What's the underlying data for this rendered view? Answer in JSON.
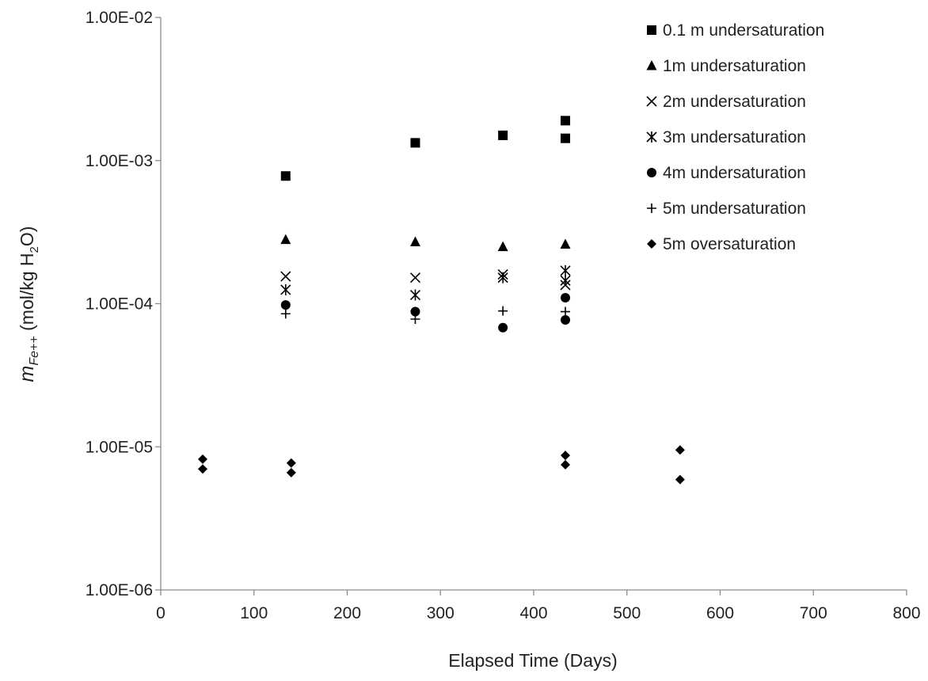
{
  "chart_data": {
    "type": "scatter",
    "title": "",
    "xlabel": "Elapsed Time (Days)",
    "ylabel": {
      "prefix": "m",
      "subscript": "Fe++",
      "units_open": " (mol/kg H",
      "units_sub": "2",
      "units_close": "O)"
    },
    "xlim": [
      0,
      800
    ],
    "ylim": [
      1e-06,
      0.01
    ],
    "yscale": "log",
    "grid": false,
    "legend_position": "top-right",
    "x_ticks": [
      {
        "value": 0,
        "label": "0"
      },
      {
        "value": 100,
        "label": "100"
      },
      {
        "value": 200,
        "label": "200"
      },
      {
        "value": 300,
        "label": "300"
      },
      {
        "value": 400,
        "label": "400"
      },
      {
        "value": 500,
        "label": "500"
      },
      {
        "value": 600,
        "label": "600"
      },
      {
        "value": 700,
        "label": "700"
      },
      {
        "value": 800,
        "label": "800"
      }
    ],
    "y_ticks": [
      {
        "value": 0.01,
        "label": "1.00E-02"
      },
      {
        "value": 0.001,
        "label": "1.00E-03"
      },
      {
        "value": 0.0001,
        "label": "1.00E-04"
      },
      {
        "value": 1e-05,
        "label": "1.00E-05"
      },
      {
        "value": 1e-06,
        "label": "1.00E-06"
      }
    ],
    "series": [
      {
        "name": "0.1 m undersaturation",
        "marker": "square",
        "color": "#000000",
        "points": [
          [
            134,
            0.00078
          ],
          [
            273,
            0.00133
          ],
          [
            367,
            0.0015
          ],
          [
            434,
            0.0019
          ],
          [
            434,
            0.00143
          ]
        ]
      },
      {
        "name": "1m undersaturation",
        "marker": "triangle",
        "color": "#000000",
        "points": [
          [
            134,
            0.00028
          ],
          [
            273,
            0.00027
          ],
          [
            367,
            0.00025
          ],
          [
            434,
            0.00026
          ]
        ]
      },
      {
        "name": "2m undersaturation",
        "marker": "x",
        "color": "#000000",
        "points": [
          [
            134,
            0.000155
          ],
          [
            273,
            0.000152
          ],
          [
            367,
            0.00016
          ],
          [
            434,
            0.000135
          ]
        ]
      },
      {
        "name": "3m undersaturation",
        "marker": "asterisk",
        "color": "#000000",
        "points": [
          [
            134,
            0.000125
          ],
          [
            273,
            0.000115
          ],
          [
            367,
            0.000152
          ],
          [
            434,
            0.00017
          ],
          [
            434,
            0.000145
          ]
        ]
      },
      {
        "name": "4m undersaturation",
        "marker": "circle",
        "color": "#000000",
        "points": [
          [
            134,
            9.8e-05
          ],
          [
            273,
            8.8e-05
          ],
          [
            367,
            6.8e-05
          ],
          [
            434,
            0.00011
          ],
          [
            434,
            7.7e-05
          ]
        ]
      },
      {
        "name": "5m undersaturation",
        "marker": "plus",
        "color": "#000000",
        "points": [
          [
            134,
            8.5e-05
          ],
          [
            273,
            7.8e-05
          ],
          [
            367,
            8.9e-05
          ],
          [
            434,
            8.8e-05
          ]
        ]
      },
      {
        "name": "5m oversaturation",
        "marker": "diamond",
        "color": "#000000",
        "points": [
          [
            45,
            8.2e-06
          ],
          [
            45,
            7e-06
          ],
          [
            140,
            7.7e-06
          ],
          [
            140,
            6.6e-06
          ],
          [
            434,
            8.7e-06
          ],
          [
            434,
            7.5e-06
          ],
          [
            557,
            9.5e-06
          ],
          [
            557,
            5.9e-06
          ]
        ]
      }
    ]
  }
}
